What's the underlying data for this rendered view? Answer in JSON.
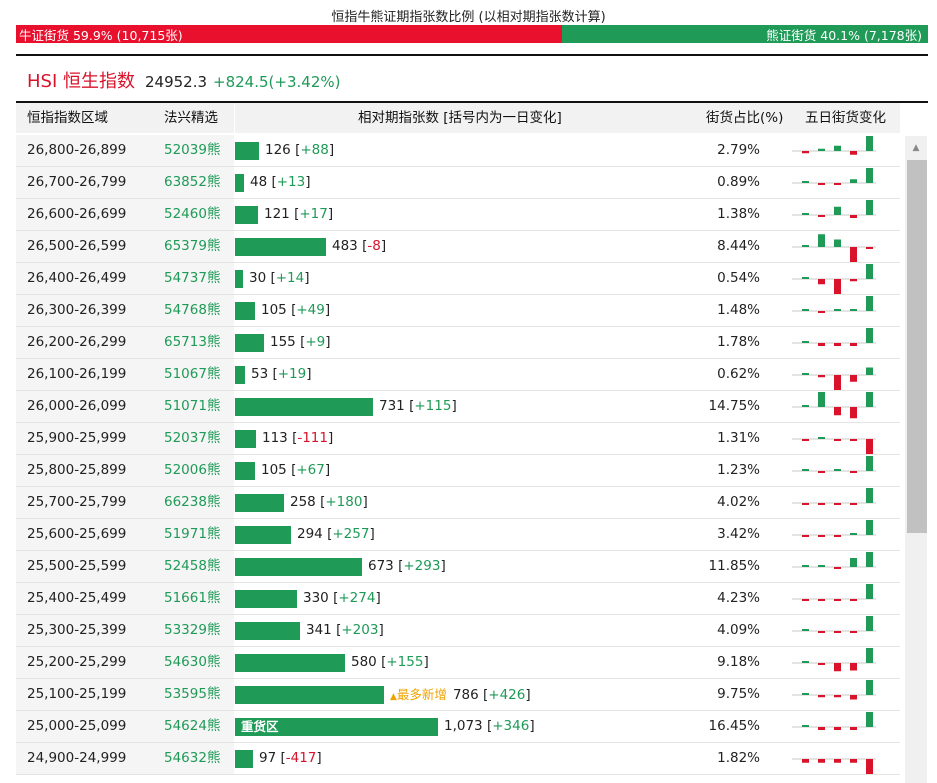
{
  "ratio": {
    "title": "恒指牛熊证期指张数比例 (以相对期指张数计算)",
    "bull_label": "牛证街货 59.9% (10,715张)",
    "bull_pct": 59.9,
    "bear_label": "熊证街货 40.1% (7,178张)",
    "bear_pct": 40.1
  },
  "index": {
    "name": "HSI 恒生指数",
    "price": "24952.3",
    "change": "+824.5(+3.42%)"
  },
  "table": {
    "headers": {
      "zone": "恒指指数区域",
      "pick": "法兴精选",
      "count": "相对期指张数 [括号内为一日变化]",
      "pct": "街货占比(%)",
      "change": "五日街货变化"
    },
    "rows": [
      {
        "zone": "26,800-26,899",
        "pick": "52039熊",
        "count": 126,
        "count_text": "126",
        "delta": "+88",
        "pct": "2.79%",
        "spark": [
          -0.15,
          0.15,
          0.35,
          -0.25,
          1.0
        ]
      },
      {
        "zone": "26,700-26,799",
        "pick": "63852熊",
        "count": 48,
        "count_text": "48",
        "delta": "+13",
        "pct": "0.89%",
        "spark": [
          0,
          -0.08,
          -0.08,
          0.25,
          1.0
        ]
      },
      {
        "zone": "26,600-26,699",
        "pick": "52460熊",
        "count": 121,
        "count_text": "121",
        "delta": "+17",
        "pct": "1.38%",
        "spark": [
          0,
          -0.08,
          0.55,
          -0.2,
          1.0
        ]
      },
      {
        "zone": "26,500-26,599",
        "pick": "65379熊",
        "count": 483,
        "count_text": "483",
        "delta": "-8",
        "pct": "8.44%",
        "spark": [
          0,
          0.85,
          0.5,
          -1.0,
          -0.1
        ]
      },
      {
        "zone": "26,400-26,499",
        "pick": "54737熊",
        "count": 30,
        "count_text": "30",
        "delta": "+14",
        "pct": "0.54%",
        "spark": [
          0,
          -0.35,
          -1.0,
          -0.15,
          1.0
        ]
      },
      {
        "zone": "26,300-26,399",
        "pick": "54768熊",
        "count": 105,
        "count_text": "105",
        "delta": "+49",
        "pct": "1.48%",
        "spark": [
          0,
          -0.1,
          0.1,
          0.1,
          1.0
        ]
      },
      {
        "zone": "26,200-26,299",
        "pick": "65713熊",
        "count": 155,
        "count_text": "155",
        "delta": "+9",
        "pct": "1.78%",
        "spark": [
          0,
          -0.2,
          -0.2,
          -0.2,
          1.0
        ]
      },
      {
        "zone": "26,100-26,199",
        "pick": "51067熊",
        "count": 53,
        "count_text": "53",
        "delta": "+19",
        "pct": "0.62%",
        "spark": [
          0,
          -0.15,
          -1.0,
          -0.45,
          0.5
        ]
      },
      {
        "zone": "26,000-26,099",
        "pick": "51071熊",
        "count": 731,
        "count_text": "731",
        "delta": "+115",
        "pct": "14.75%",
        "spark": [
          0,
          1.0,
          -0.55,
          -0.75,
          1.0
        ]
      },
      {
        "zone": "25,900-25,999",
        "pick": "52037熊",
        "count": 113,
        "count_text": "113",
        "delta": "-111",
        "pct": "1.31%",
        "spark": [
          -0.05,
          0.05,
          -0.05,
          -0.05,
          -1.0
        ]
      },
      {
        "zone": "25,800-25,899",
        "pick": "52006熊",
        "count": 105,
        "count_text": "105",
        "delta": "+67",
        "pct": "1.23%",
        "spark": [
          0,
          -0.05,
          0,
          -0.05,
          1.0
        ]
      },
      {
        "zone": "25,700-25,799",
        "pick": "66238熊",
        "count": 258,
        "count_text": "258",
        "delta": "+180",
        "pct": "4.02%",
        "spark": [
          -0.05,
          -0.05,
          -0.05,
          -0.05,
          1.0
        ]
      },
      {
        "zone": "25,600-25,699",
        "pick": "51971熊",
        "count": 294,
        "count_text": "294",
        "delta": "+257",
        "pct": "3.42%",
        "spark": [
          -0.05,
          -0.05,
          -0.05,
          0.1,
          1.0
        ]
      },
      {
        "zone": "25,500-25,599",
        "pick": "52458熊",
        "count": 673,
        "count_text": "673",
        "delta": "+293",
        "pct": "11.85%",
        "spark": [
          0,
          0.05,
          -0.05,
          0.6,
          1.0
        ]
      },
      {
        "zone": "25,400-25,499",
        "pick": "51661熊",
        "count": 330,
        "count_text": "330",
        "delta": "+274",
        "pct": "4.23%",
        "spark": [
          -0.05,
          -0.05,
          -0.05,
          -0.05,
          1.0
        ]
      },
      {
        "zone": "25,300-25,399",
        "pick": "53329熊",
        "count": 341,
        "count_text": "341",
        "delta": "+203",
        "pct": "4.09%",
        "spark": [
          0,
          -0.05,
          -0.05,
          -0.05,
          1.0
        ]
      },
      {
        "zone": "25,200-25,299",
        "pick": "54630熊",
        "count": 580,
        "count_text": "580",
        "delta": "+155",
        "pct": "9.18%",
        "spark": [
          0,
          -0.1,
          -0.55,
          -0.5,
          1.0
        ]
      },
      {
        "zone": "25,100-25,199",
        "pick": "53595熊",
        "count": 786,
        "count_text": "786",
        "delta": "+426",
        "pct": "9.75%",
        "flag": "最多新增",
        "spark": [
          0,
          -0.15,
          -0.15,
          -0.3,
          1.0
        ]
      },
      {
        "zone": "25,000-25,099",
        "pick": "54624熊",
        "count": 1073,
        "count_text": "1,073",
        "delta": "+346",
        "pct": "16.45%",
        "tag": "重货区",
        "spark": [
          0,
          -0.2,
          -0.2,
          -0.2,
          1.0
        ]
      },
      {
        "zone": "24,900-24,999",
        "pick": "54632熊",
        "count": 97,
        "count_text": "97",
        "delta": "-417",
        "pct": "1.82%",
        "spark": [
          -0.25,
          -0.25,
          -0.25,
          -0.25,
          -1.0
        ]
      }
    ]
  },
  "colors": {
    "bull": "#e8102d",
    "bear": "#1f9a57",
    "up": "#1f9a57",
    "down": "#d8132b",
    "flag": "#f0a300"
  },
  "icons": {
    "scroll_up": "triangle-up-icon"
  }
}
